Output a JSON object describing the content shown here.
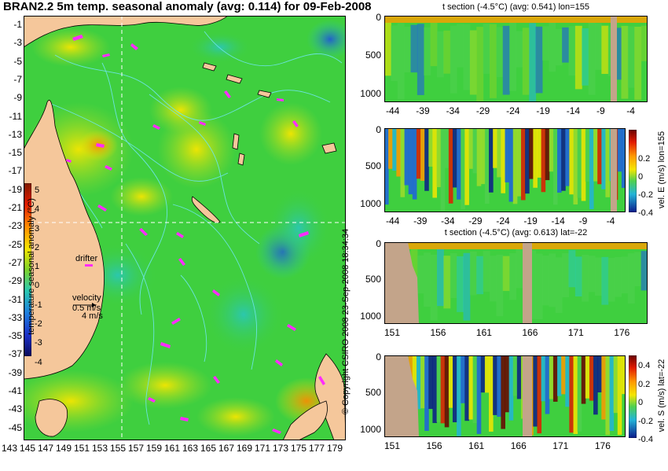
{
  "map": {
    "title": "BRAN2.2 5m temp. seasonal anomaly (avg: 0.114) for 09-Feb-2008",
    "lat_labels": [
      "-1",
      "-3",
      "-5",
      "-7",
      "-9",
      "-11",
      "-13",
      "-15",
      "-17",
      "-19",
      "-21",
      "-23",
      "-25",
      "-27",
      "-29",
      "-31",
      "-33",
      "-35",
      "-37",
      "-39",
      "-41",
      "-43",
      "-45"
    ],
    "lon_labels": [
      "143",
      "145",
      "147",
      "149",
      "151",
      "153",
      "155",
      "157",
      "159",
      "161",
      "163",
      "165",
      "167",
      "169",
      "171",
      "173",
      "175",
      "177",
      "179"
    ],
    "colorbar": {
      "label": "temperature seasonal anomaly (°C)",
      "ticks": [
        "5",
        "4",
        "3",
        "2",
        "1",
        "0",
        "-1",
        "-2",
        "-3",
        "-4"
      ]
    },
    "drifter_label": "drifter",
    "velocity_label": "velocity",
    "velocity_value": "0.5 m/s",
    "velocity_value2": "4 m/s"
  },
  "panels": [
    {
      "title": "t section (-4.5°C) (avg: 0.541) lon=155",
      "x_ticks": [
        "-44",
        "-39",
        "-34",
        "-29",
        "-24",
        "-19",
        "-14",
        "-9",
        "-4"
      ],
      "y_ticks": [
        "0",
        "500",
        "1000"
      ]
    },
    {
      "title": "",
      "x_ticks": [
        "-44",
        "-39",
        "-34",
        "-29",
        "-24",
        "-19",
        "-14",
        "-9",
        "-4"
      ],
      "y_ticks": [
        "0",
        "500",
        "1000"
      ],
      "colorbar_label": "vel. E (m/s) lon=155",
      "colorbar_ticks": [
        "0.2",
        "0",
        "-0.2",
        "-0.4"
      ]
    },
    {
      "title": "t section (-4.5°C) (avg: 0.613) lat=-22",
      "x_ticks": [
        "151",
        "156",
        "161",
        "166",
        "171",
        "176"
      ],
      "y_ticks": [
        "0",
        "500",
        "1000"
      ]
    },
    {
      "title": "",
      "x_ticks": [
        "151",
        "156",
        "161",
        "166",
        "171",
        "176"
      ],
      "y_ticks": [
        "0",
        "500",
        "1000"
      ],
      "colorbar_label": "vel. S (m/s) lat=-22",
      "colorbar_ticks": [
        "0.4",
        "0.2",
        "0",
        "-0.2",
        "-0.4"
      ]
    }
  ],
  "copyright": "© Copyright CSIRO 2008 23-Sep-2008 18:34:34",
  "colors": {
    "land": "#f5c79b",
    "ocean_base": "#3fcf3f",
    "contour": "#6fe6f0",
    "drifter": "#ff2bff",
    "section_land": "#c3a48a"
  }
}
